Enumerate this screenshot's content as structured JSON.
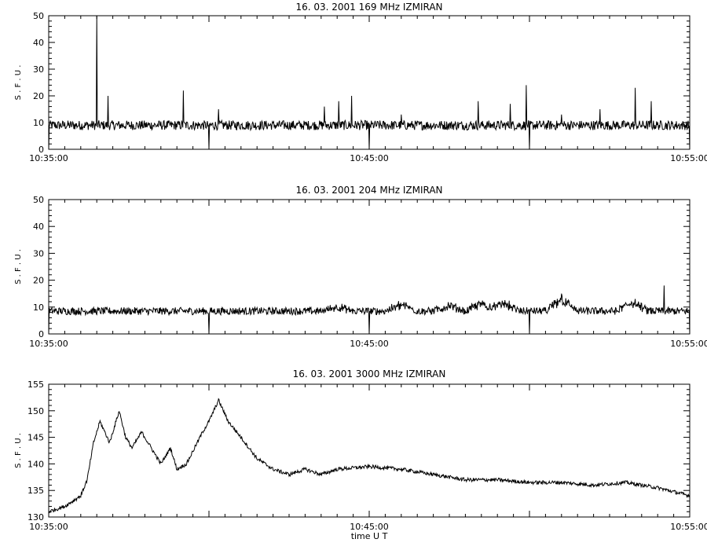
{
  "chart_data": [
    {
      "type": "line",
      "title": "16.  03.  2001    169 MHz    IZMIRAN",
      "ylabel": "S. F. U.",
      "xlabel": "",
      "x_ticks": [
        "10:35:00",
        "10:45:00",
        "10:55:00"
      ],
      "x_range_min": [
        0,
        20
      ],
      "ylim": [
        0,
        50
      ],
      "y_ticks": [
        0,
        10,
        20,
        30,
        40,
        50
      ],
      "baseline": 9,
      "noise": 0.9,
      "series": [
        {
          "peaks": [
            [
              1.5,
              50
            ],
            [
              1.85,
              20
            ],
            [
              4.2,
              22
            ],
            [
              5.3,
              15
            ],
            [
              8.6,
              16
            ],
            [
              9.05,
              18
            ],
            [
              9.45,
              20
            ],
            [
              11.0,
              13
            ],
            [
              13.4,
              18
            ],
            [
              14.4,
              17
            ],
            [
              14.9,
              24
            ],
            [
              16.0,
              13
            ],
            [
              17.2,
              15
            ],
            [
              18.3,
              23
            ],
            [
              18.8,
              18
            ]
          ],
          "dips": [
            0,
            5,
            10,
            15,
            20
          ]
        }
      ]
    },
    {
      "type": "line",
      "title": "16.  03.  2001    204 MHz    IZMIRAN",
      "ylabel": "S. F. U.",
      "xlabel": "",
      "x_ticks": [
        "10:35:00",
        "10:45:00",
        "10:55:00"
      ],
      "x_range_min": [
        0,
        20
      ],
      "ylim": [
        0,
        50
      ],
      "y_ticks": [
        0,
        10,
        20,
        30,
        40,
        50
      ],
      "baseline": 8.5,
      "noise": 0.7,
      "series": [
        {
          "bumps": [
            [
              9.0,
              10.5
            ],
            [
              11.0,
              11.5
            ],
            [
              12.5,
              11
            ],
            [
              13.5,
              12
            ],
            [
              14.2,
              12
            ],
            [
              16.0,
              14
            ],
            [
              18.2,
              12.5
            ]
          ],
          "peaks": [
            [
              19.2,
              18
            ],
            [
              16.0,
              15
            ],
            [
              18.3,
              13
            ]
          ],
          "dips": [
            0,
            5,
            10,
            15,
            20
          ]
        }
      ]
    },
    {
      "type": "line",
      "title": "16.  03.  2001    3000 MHz    IZMIRAN",
      "ylabel": "S. F. U.",
      "xlabel": "time  U T",
      "x_ticks": [
        "10:35:00",
        "10:45:00",
        "10:55:00"
      ],
      "x_range_min": [
        0,
        20
      ],
      "ylim": [
        130,
        155
      ],
      "y_ticks": [
        130,
        135,
        140,
        145,
        150,
        155
      ],
      "noise": 0.35,
      "series": [
        {
          "x": [
            0,
            0.5,
            1.0,
            1.2,
            1.4,
            1.6,
            1.9,
            2.2,
            2.4,
            2.6,
            2.9,
            3.2,
            3.5,
            3.8,
            4.0,
            4.3,
            4.8,
            5.0,
            5.3,
            5.6,
            6.0,
            6.5,
            7.0,
            7.5,
            8.0,
            8.5,
            9.0,
            10.0,
            11.0,
            12.0,
            13.0,
            14.0,
            15.0,
            16.0,
            17.0,
            18.0,
            19.0,
            20.0
          ],
          "values": [
            131,
            132,
            134,
            137,
            144,
            148,
            144,
            150,
            145,
            143,
            146,
            143,
            140,
            143,
            139,
            140,
            146,
            148,
            152,
            148,
            145,
            141,
            139,
            138,
            139,
            138,
            139,
            139.5,
            139,
            138,
            137,
            137,
            136.5,
            136.5,
            136,
            136.5,
            135.5,
            134
          ]
        }
      ]
    }
  ]
}
